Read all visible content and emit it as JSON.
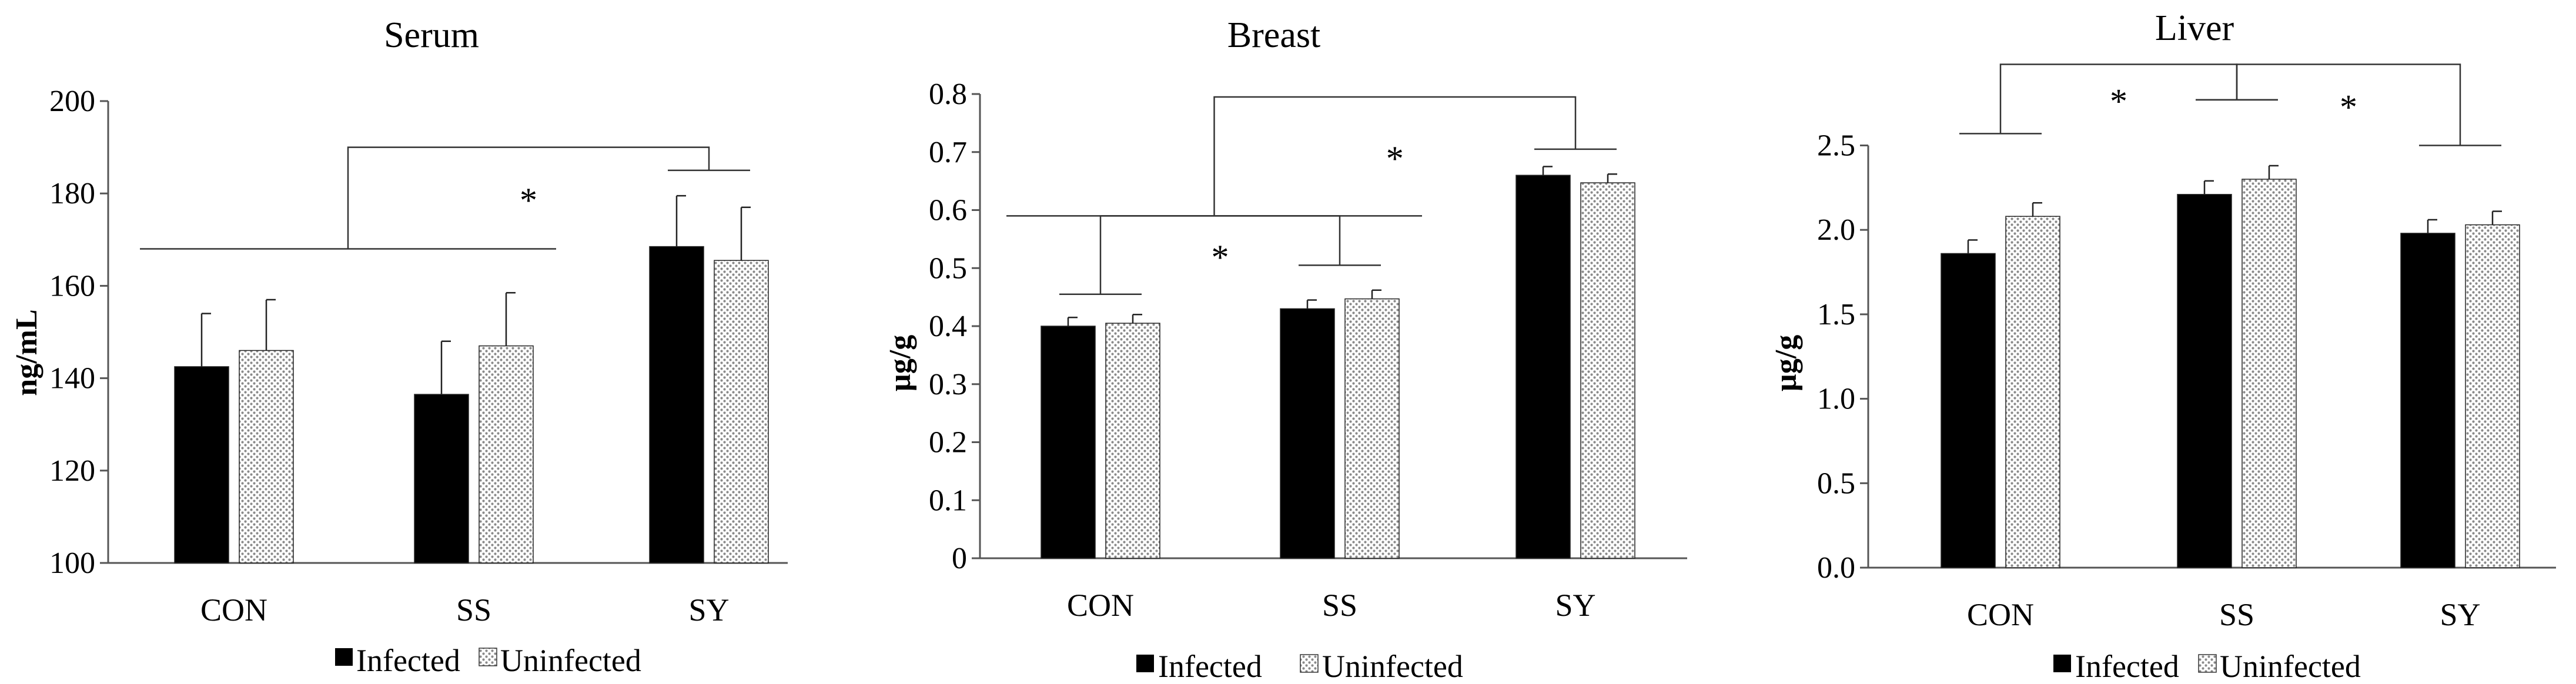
{
  "colors": {
    "infected": "#000000",
    "uninfected_pattern": "#8a8a8a",
    "axis": "#555555",
    "bracket": "#333333"
  },
  "series_names": [
    "Infected",
    "Uninfected"
  ],
  "chart_data": [
    {
      "type": "bar",
      "title": "Serum",
      "ylabel": "ng/mL",
      "xlabel": "",
      "categories": [
        "CON",
        "SS",
        "SY"
      ],
      "ylim": [
        100,
        200
      ],
      "yticks": [
        "100",
        "120",
        "140",
        "160",
        "180",
        "200"
      ],
      "series": [
        {
          "name": "Infected",
          "values": [
            142.5,
            136.5,
            168.5
          ],
          "errors": [
            11.5,
            11.5,
            11
          ]
        },
        {
          "name": "Uninfected",
          "values": [
            146,
            147,
            165.5
          ],
          "errors": [
            11,
            11.5,
            11.5
          ]
        }
      ],
      "brackets": [
        {
          "label": "*",
          "left_groups": [
            0,
            1
          ],
          "left_y": 168,
          "right_groups": [
            2
          ],
          "right_y": 185,
          "top_y": 190
        }
      ]
    },
    {
      "type": "bar",
      "title": "Breast",
      "ylabel": "µg/g",
      "xlabel": "",
      "categories": [
        "CON",
        "SS",
        "SY"
      ],
      "ylim": [
        0,
        0.8
      ],
      "yticks": [
        "0",
        "0.1",
        "0.2",
        "0.3",
        "0.4",
        "0.5",
        "0.6",
        "0.7",
        "0.8"
      ],
      "series": [
        {
          "name": "Infected",
          "values": [
            0.4,
            0.43,
            0.66
          ],
          "errors": [
            0.015,
            0.015,
            0.015
          ]
        },
        {
          "name": "Uninfected",
          "values": [
            0.405,
            0.447,
            0.647
          ],
          "errors": [
            0.015,
            0.015,
            0.015
          ]
        }
      ],
      "brackets": [
        {
          "label": "*",
          "left_groups": [
            0
          ],
          "left_y": 0.455,
          "right_groups": [
            1
          ],
          "right_y": 0.505,
          "top_y": 0.59
        },
        {
          "label": "*",
          "left_groups": [
            0,
            1
          ],
          "left_y": 0.59,
          "right_groups": [
            2
          ],
          "right_y": 0.705,
          "top_y": 0.795
        }
      ]
    },
    {
      "type": "bar",
      "title": "Liver",
      "ylabel": "µg/g",
      "xlabel": "",
      "categories": [
        "CON",
        "SS",
        "SY"
      ],
      "ylim": [
        0,
        2.7
      ],
      "yticks": [
        "0.0",
        "0.5",
        "1.0",
        "1.5",
        "2.0",
        "2.5"
      ],
      "series": [
        {
          "name": "Infected",
          "values": [
            1.86,
            2.21,
            1.98
          ],
          "errors": [
            0.08,
            0.08,
            0.08
          ]
        },
        {
          "name": "Uninfected",
          "values": [
            2.08,
            2.3,
            2.03
          ],
          "errors": [
            0.08,
            0.08,
            0.08
          ]
        }
      ],
      "brackets": [
        {
          "label": "*",
          "left_groups": [
            0
          ],
          "left_y": 2.57,
          "right_groups": [
            1
          ],
          "right_y": 2.77,
          "top_y": 2.98
        },
        {
          "label": "*",
          "left_groups": [
            1
          ],
          "left_y": 2.77,
          "right_groups": [
            2
          ],
          "right_y": 2.5,
          "top_y": 2.98
        }
      ]
    }
  ]
}
